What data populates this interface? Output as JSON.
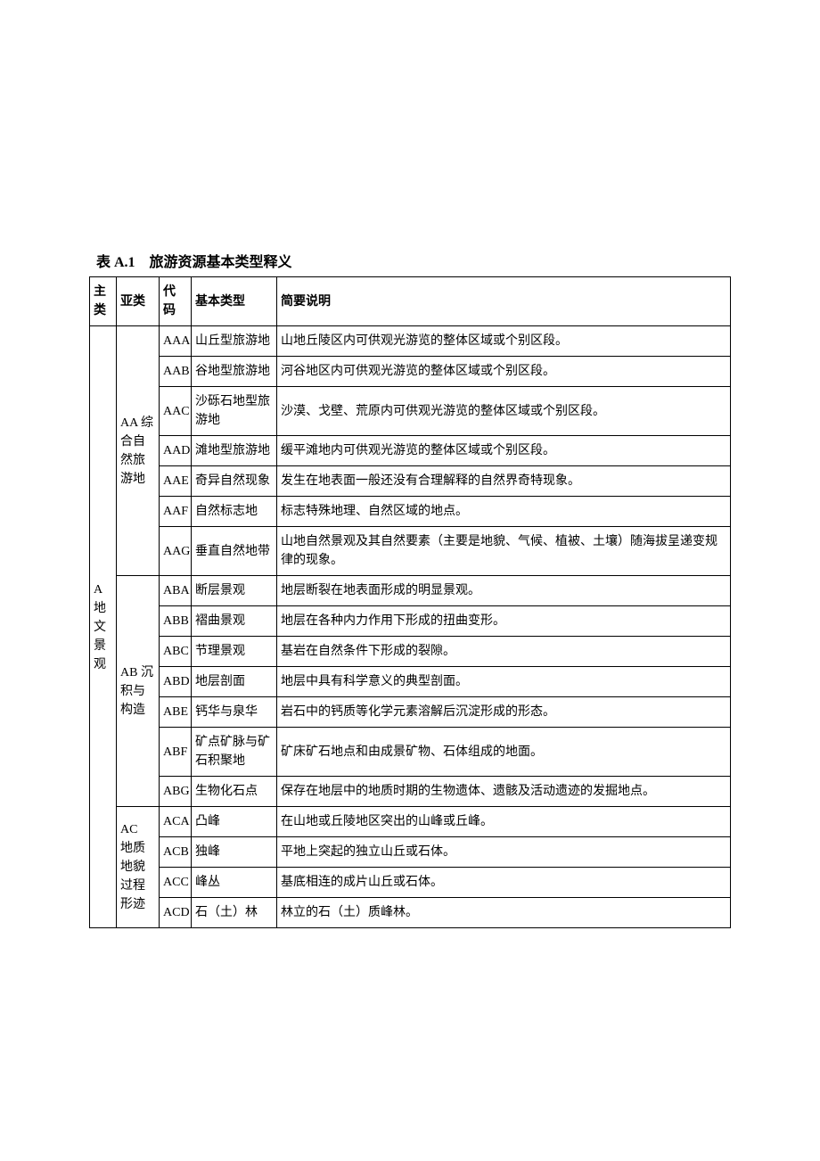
{
  "title": "表 A.1　旅游资源基本类型释义",
  "headers": {
    "mainClass": "主类",
    "subClass": "亚类",
    "code": "代码",
    "basicType": "基本类型",
    "description": "简要说明"
  },
  "mainClass": {
    "label": "A 地文景观"
  },
  "subClasses": {
    "AA": "AA 综合自然旅游地",
    "AB": "AB 沉积与构造",
    "AC": "AC　地质地貌过程形迹"
  },
  "rows": {
    "r0": {
      "code": "AAA",
      "type": "山丘型旅游地",
      "desc": "山地丘陵区内可供观光游览的整体区域或个别区段。"
    },
    "r1": {
      "code": "AAB",
      "type": "谷地型旅游地",
      "desc": "河谷地区内可供观光游览的整体区域或个别区段。"
    },
    "r2": {
      "code": "AAC",
      "type": "沙砾石地型旅游地",
      "desc": "沙漠、戈壁、荒原内可供观光游览的整体区域或个别区段。"
    },
    "r3": {
      "code": "AAD",
      "type": "滩地型旅游地",
      "desc": "缓平滩地内可供观光游览的整体区域或个别区段。"
    },
    "r4": {
      "code": "AAE",
      "type": "奇异自然现象",
      "desc": "发生在地表面一般还没有合理解释的自然界奇特现象。"
    },
    "r5": {
      "code": "AAF",
      "type": "自然标志地",
      "desc": "标志特殊地理、自然区域的地点。"
    },
    "r6": {
      "code": "AAG",
      "type": "垂直自然地带",
      "desc": "山地自然景观及其自然要素（主要是地貌、气候、植被、土壤）随海拔呈递变规律的现象。"
    },
    "r7": {
      "code": "ABA",
      "type": "断层景观",
      "desc": "地层断裂在地表面形成的明显景观。"
    },
    "r8": {
      "code": "ABB",
      "type": "褶曲景观",
      "desc": "地层在各种内力作用下形成的扭曲变形。"
    },
    "r9": {
      "code": "ABC",
      "type": "节理景观",
      "desc": "基岩在自然条件下形成的裂隙。"
    },
    "r10": {
      "code": "ABD",
      "type": "地层剖面",
      "desc": "地层中具有科学意义的典型剖面。"
    },
    "r11": {
      "code": "ABE",
      "type": "钙华与泉华",
      "desc": "岩石中的钙质等化学元素溶解后沉淀形成的形态。"
    },
    "r12": {
      "code": "ABF",
      "type": "矿点矿脉与矿石积聚地",
      "desc": "矿床矿石地点和由成景矿物、石体组成的地面。"
    },
    "r13": {
      "code": "ABG",
      "type": "生物化石点",
      "desc": "保存在地层中的地质时期的生物遗体、遗骸及活动遗迹的发掘地点。"
    },
    "r14": {
      "code": "ACA",
      "type": "凸峰",
      "desc": "在山地或丘陵地区突出的山峰或丘峰。"
    },
    "r15": {
      "code": "ACB",
      "type": "独峰",
      "desc": "平地上突起的独立山丘或石体。"
    },
    "r16": {
      "code": "ACC",
      "type": "峰丛",
      "desc": "基底相连的成片山丘或石体。"
    },
    "r17": {
      "code": "ACD",
      "type": "石（土）林",
      "desc": "林立的石（土）质峰林。"
    }
  },
  "styling": {
    "background_color": "#ffffff",
    "border_color": "#000000",
    "text_color": "#000000",
    "title_fontsize": 16,
    "cell_fontsize": 14,
    "font_family": "SimSun"
  }
}
